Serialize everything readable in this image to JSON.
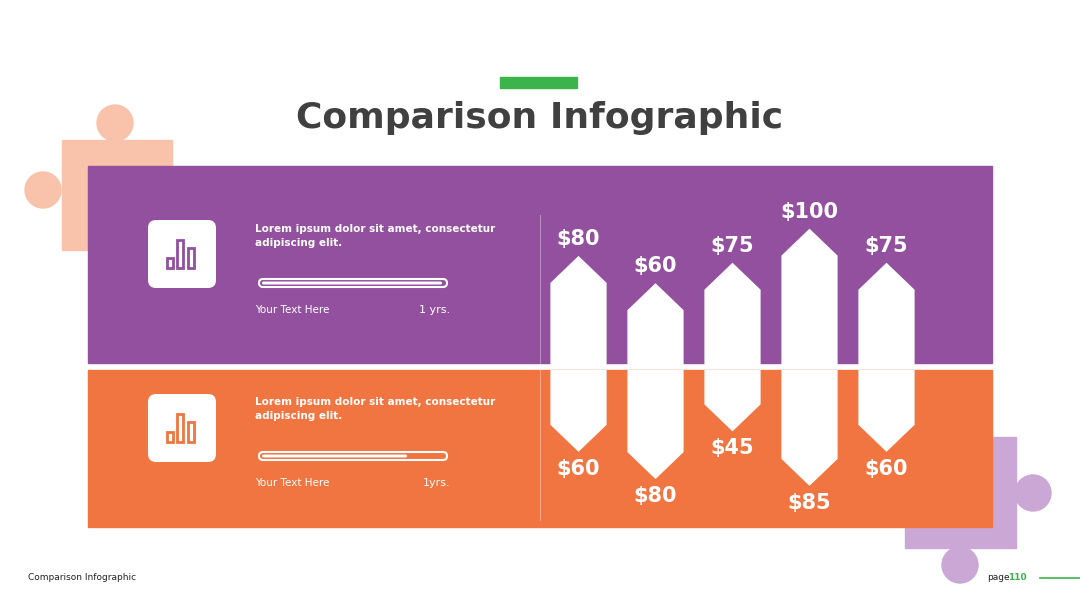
{
  "title": "Comparison Infographic",
  "panels": [
    {
      "text": "Lorem ipsum dolor sit amet, consectetur\nadipiscing elit.",
      "caption": "Your Text Here",
      "duration": "1 yrs.",
      "color": "#92509f"
    },
    {
      "text": "Lorem ipsum dolor sit amet, consectetur\nadipiscing elit.",
      "caption": "Your Text Here",
      "duration": "1yrs.",
      "color": "#f07541"
    }
  ],
  "chart_data": [
    {
      "type": "bar",
      "categories": [
        null,
        null,
        null,
        null,
        null
      ],
      "values": [
        80,
        60,
        75,
        100,
        75
      ],
      "value_labels": [
        "$80",
        "$60",
        "$75",
        "$100",
        "$75"
      ],
      "color": "#ffffff",
      "ylim": [
        0,
        110
      ],
      "data_labels": true,
      "tick_labels": false
    },
    {
      "type": "bar",
      "categories": [
        null,
        null,
        null,
        null,
        null
      ],
      "values": [
        60,
        80,
        45,
        85,
        60
      ],
      "value_labels": [
        "$60",
        "$80",
        "$45",
        "$85",
        "$60"
      ],
      "color": "#ffffff",
      "ylim": [
        110,
        0
      ],
      "data_labels": true,
      "tick_labels": false
    }
  ],
  "footer": {
    "text": "Comparison Infographic",
    "page_label": "page",
    "page_number": 110
  }
}
